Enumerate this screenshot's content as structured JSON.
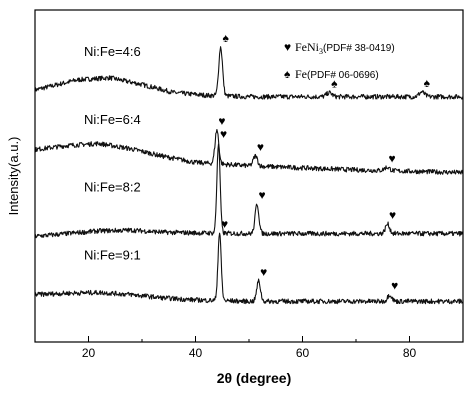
{
  "chart_data": {
    "type": "line",
    "title": "",
    "xlabel": "2θ (degree)",
    "ylabel": "Intensity(a.u.)",
    "xlim": [
      10,
      90
    ],
    "x_ticks": [
      20,
      40,
      60,
      80
    ],
    "y_ticks_shown": false,
    "grid": false,
    "legend": {
      "placement": "top-right",
      "entries": [
        {
          "marker": "♥",
          "name": "FeNi",
          "subscript": "3",
          "ref": "(PDF# 38-0419)"
        },
        {
          "marker": "♠",
          "name": "Fe",
          "subscript": "",
          "ref": "(PDF# 06-0696)"
        }
      ]
    },
    "series": [
      {
        "name": "Ni:Fe=4:6",
        "offset": 3.0,
        "baseline": [
          [
            10,
            0.12
          ],
          [
            18,
            0.27
          ],
          [
            24,
            0.3
          ],
          [
            30,
            0.2
          ],
          [
            36,
            0.08
          ],
          [
            42,
            0.04
          ],
          [
            50,
            0.02
          ],
          [
            60,
            0.02
          ],
          [
            70,
            0.02
          ],
          [
            80,
            0.02
          ],
          [
            90,
            0.02
          ]
        ],
        "peaks": [
          {
            "x": 44.7,
            "h": 0.72,
            "w": 0.35
          },
          {
            "x": 65.0,
            "h": 0.06,
            "w": 0.5
          },
          {
            "x": 82.3,
            "h": 0.07,
            "w": 0.5
          }
        ],
        "markers": [
          {
            "x": 44.7,
            "symbol": "♠"
          },
          {
            "x": 65.0,
            "symbol": "♠"
          },
          {
            "x": 82.3,
            "symbol": "♠"
          }
        ]
      },
      {
        "name": "Ni:Fe=6:4",
        "offset": 2.0,
        "baseline": [
          [
            10,
            0.24
          ],
          [
            16,
            0.3
          ],
          [
            22,
            0.33
          ],
          [
            28,
            0.25
          ],
          [
            34,
            0.14
          ],
          [
            40,
            0.05
          ],
          [
            50,
            0.0
          ],
          [
            60,
            -0.03
          ],
          [
            70,
            -0.06
          ],
          [
            80,
            -0.08
          ],
          [
            90,
            -0.1
          ]
        ],
        "peaks": [
          {
            "x": 44.0,
            "h": 0.5,
            "w": 0.35
          },
          {
            "x": 51.2,
            "h": 0.15,
            "w": 0.4
          },
          {
            "x": 75.8,
            "h": 0.05,
            "w": 0.5
          }
        ],
        "markers": [
          {
            "x": 44.0,
            "symbol": "♥"
          },
          {
            "x": 51.2,
            "symbol": "♥"
          },
          {
            "x": 75.8,
            "symbol": "♥"
          }
        ]
      },
      {
        "name": "Ni:Fe=8:2",
        "offset": 1.0,
        "baseline": [
          [
            10,
            -0.04
          ],
          [
            16,
            0.0
          ],
          [
            22,
            0.04
          ],
          [
            28,
            0.05
          ],
          [
            34,
            0.02
          ],
          [
            40,
            0.01
          ],
          [
            50,
            0.0
          ],
          [
            60,
            0.0
          ],
          [
            70,
            0.0
          ],
          [
            80,
            0.0
          ],
          [
            90,
            0.0
          ]
        ],
        "peaks": [
          {
            "x": 44.3,
            "h": 1.33,
            "w": 0.3
          },
          {
            "x": 51.5,
            "h": 0.44,
            "w": 0.35
          },
          {
            "x": 75.9,
            "h": 0.14,
            "w": 0.4
          }
        ],
        "markers": [
          {
            "x": 44.3,
            "symbol": "♥"
          },
          {
            "x": 51.5,
            "symbol": "♥"
          },
          {
            "x": 75.9,
            "symbol": "♥"
          }
        ]
      },
      {
        "name": "Ni:Fe=9:1",
        "offset": 0.0,
        "baseline": [
          [
            10,
            0.1
          ],
          [
            16,
            0.12
          ],
          [
            22,
            0.13
          ],
          [
            28,
            0.1
          ],
          [
            34,
            0.05
          ],
          [
            40,
            0.02
          ],
          [
            50,
            0.0
          ],
          [
            60,
            0.0
          ],
          [
            70,
            0.0
          ],
          [
            80,
            0.0
          ],
          [
            90,
            0.0
          ]
        ],
        "peaks": [
          {
            "x": 44.5,
            "h": 1.0,
            "w": 0.3
          },
          {
            "x": 51.8,
            "h": 0.3,
            "w": 0.35
          },
          {
            "x": 76.3,
            "h": 0.1,
            "w": 0.4
          }
        ],
        "markers": [
          {
            "x": 44.5,
            "symbol": "♥"
          },
          {
            "x": 51.8,
            "symbol": "♥"
          },
          {
            "x": 76.3,
            "symbol": "♥"
          }
        ]
      }
    ]
  }
}
